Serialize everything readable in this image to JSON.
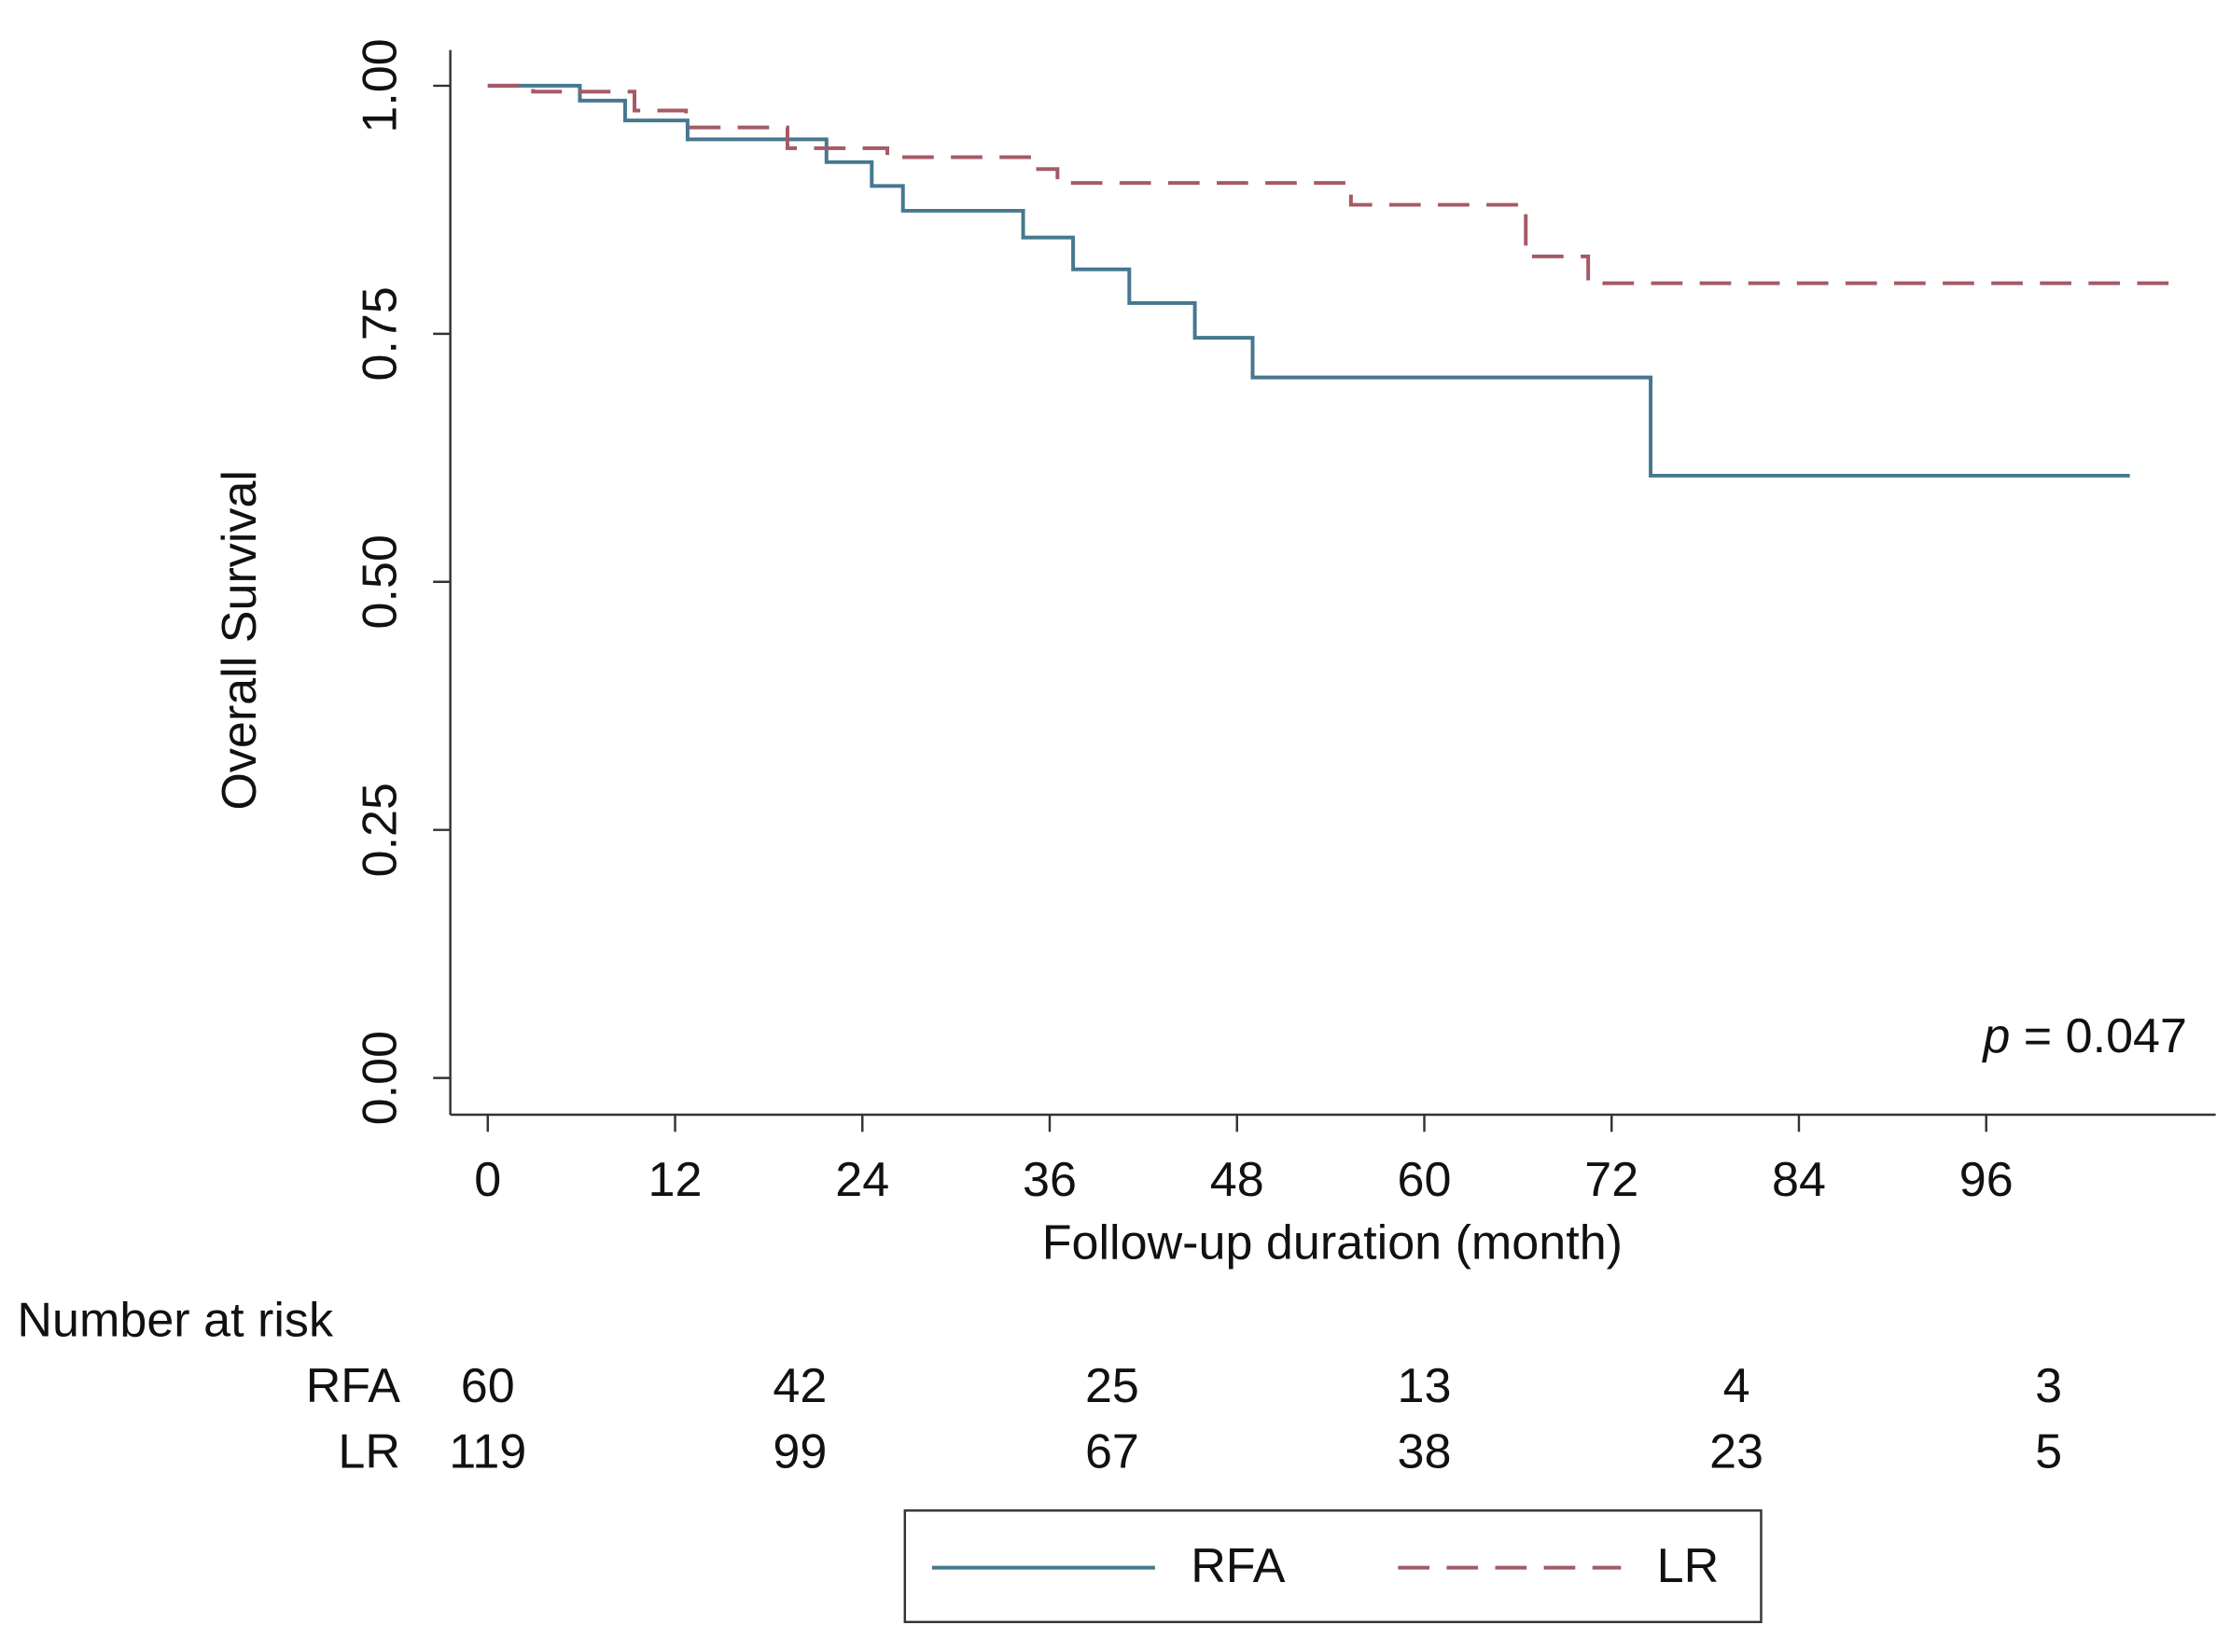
{
  "chart_data": {
    "type": "step",
    "ylabel": "Overall Survival",
    "xlabel": "Follow-up duration (month)",
    "xlim": [
      -2.4,
      110.7
    ],
    "ylim": [
      -0.037,
      1.036
    ],
    "xticks": [
      0,
      12,
      24,
      36,
      48,
      60,
      72,
      84,
      96
    ],
    "yticks": [
      {
        "value": 0,
        "label": "0.00"
      },
      {
        "value": 0.25,
        "label": "0.25"
      },
      {
        "value": 0.5,
        "label": "0.50"
      },
      {
        "value": 0.75,
        "label": "0.75"
      },
      {
        "value": 1,
        "label": "1.00"
      }
    ],
    "series": [
      {
        "name": "RFA",
        "color": "#46788f",
        "style": "solid",
        "x": [
          0,
          5.9,
          8.8,
          12.8,
          21.7,
          24.6,
          26.6,
          34.3,
          37.5,
          41.1,
          45.3,
          49.0,
          74.5,
          105.2
        ],
        "values": [
          1,
          0.985,
          0.965,
          0.946,
          0.923,
          0.899,
          0.874,
          0.847,
          0.815,
          0.781,
          0.746,
          0.706,
          0.607,
          0.607
        ]
      },
      {
        "name": "LR",
        "color": "#a55a66",
        "style": "dashed",
        "x": [
          0,
          2.9,
          9.4,
          12.7,
          19.2,
          25.6,
          34.9,
          36.5,
          55.3,
          66.5,
          70.5,
          108.5
        ],
        "values": [
          1,
          0.994,
          0.975,
          0.958,
          0.937,
          0.928,
          0.916,
          0.902,
          0.88,
          0.828,
          0.801,
          0.801
        ]
      }
    ],
    "annotation": {
      "italic": "p",
      "text": "= 0.047"
    },
    "at_risk": {
      "title": "Number at risk",
      "times": [
        0,
        20,
        40,
        60,
        80,
        100
      ],
      "rows": [
        {
          "name": "RFA",
          "values": [
            60,
            42,
            25,
            13,
            4,
            3
          ]
        },
        {
          "name": "LR",
          "values": [
            119,
            99,
            67,
            38,
            23,
            5
          ]
        }
      ]
    }
  }
}
